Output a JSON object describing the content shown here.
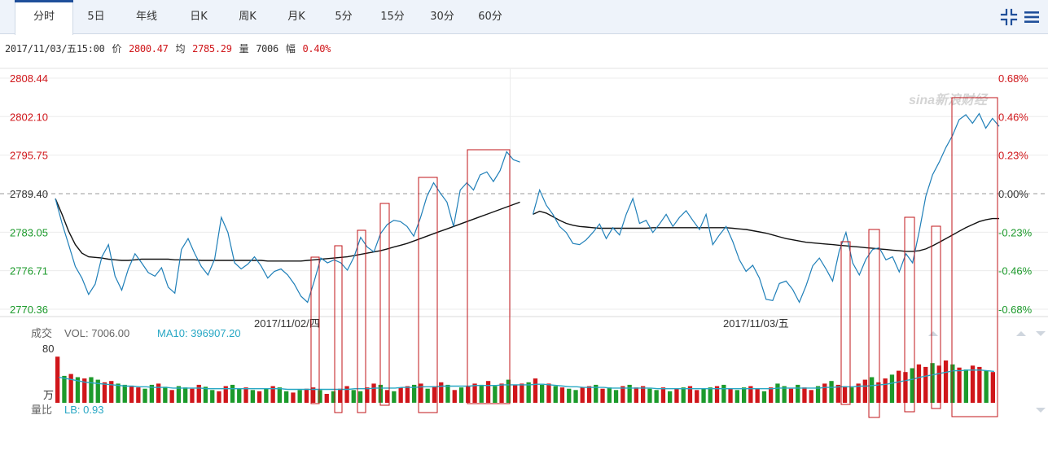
{
  "tabs": [
    "分时",
    "5日",
    "年线",
    "日K",
    "周K",
    "月K",
    "5分",
    "15分",
    "30分",
    "60分"
  ],
  "active_tab": "分时",
  "info": {
    "datetime": "2017/11/03/五15:00",
    "price_label": "价",
    "price": "2800.47",
    "avg_label": "均",
    "avg": "2785.29",
    "vol_label": "量",
    "vol": "7006",
    "amp_label": "幅",
    "amp": "0.40%"
  },
  "watermark": "sina新浪财经",
  "icons": {
    "fullscreen": "collapse-arrows-icon",
    "menu": "menu-icon"
  },
  "colors": {
    "price_line": "#1f7fb8",
    "avg_line": "#111111",
    "up": "#d0161a",
    "down": "#1c9a2b",
    "ma_line": "#27a7c4",
    "highlight_box": "#c0141a",
    "base_line": "#999999"
  },
  "chart_data": {
    "type": "line",
    "title": "",
    "y_ticks_left": [
      "2808.44",
      "2802.10",
      "2795.75",
      "2789.40",
      "2783.05",
      "2776.71",
      "2770.36"
    ],
    "y_ticks_right": [
      "0.68%",
      "0.46%",
      "0.23%",
      "0.00%",
      "-0.23%",
      "-0.46%",
      "-0.68%"
    ],
    "ylim": [
      2770.36,
      2808.44
    ],
    "prev_close": 2789.4,
    "x_labels": [
      "2017/11/02/四",
      "2017/11/03/五"
    ],
    "series": [
      {
        "day": "2017/11/02/四",
        "price": [
          2788.6,
          2784.5,
          2781.0,
          2777.4,
          2775.5,
          2772.8,
          2774.5,
          2779.0,
          2781.0,
          2775.8,
          2773.5,
          2777.0,
          2779.5,
          2778.0,
          2776.4,
          2775.8,
          2777.2,
          2774.0,
          2773.0,
          2780.2,
          2782.0,
          2779.5,
          2777.4,
          2776.0,
          2778.6,
          2785.5,
          2783.0,
          2778.0,
          2777.0,
          2777.8,
          2779.0,
          2777.5,
          2775.5,
          2776.6,
          2777.0,
          2776.0,
          2774.5,
          2772.5,
          2771.5,
          2775.0,
          2778.8,
          2778.0,
          2778.5,
          2778.0,
          2776.8,
          2779.0,
          2782.2,
          2780.6,
          2779.8,
          2782.8,
          2784.3,
          2785.0,
          2784.8,
          2784.0,
          2782.4,
          2785.4,
          2789.0,
          2791.2,
          2789.5,
          2788.0,
          2784.0,
          2790.0,
          2791.2,
          2790.0,
          2792.5,
          2793.0,
          2791.4,
          2793.2,
          2796.3,
          2795.0,
          2794.6
        ],
        "avg": [
          2788.6,
          2786.0,
          2783.2,
          2781.0,
          2779.6,
          2779.0,
          2778.9,
          2778.8,
          2778.6,
          2778.5,
          2778.4,
          2778.4,
          2778.5,
          2778.6,
          2778.6,
          2778.6,
          2778.6,
          2778.6,
          2778.5,
          2778.5,
          2778.5,
          2778.5,
          2778.4,
          2778.4,
          2778.4,
          2778.4,
          2778.4,
          2778.4,
          2778.4,
          2778.4,
          2778.4,
          2778.4,
          2778.3,
          2778.3,
          2778.3,
          2778.3,
          2778.3,
          2778.3,
          2778.4,
          2778.5,
          2778.6,
          2778.7,
          2778.8,
          2778.9,
          2779.0,
          2779.2,
          2779.4,
          2779.6,
          2779.8,
          2780.0,
          2780.3,
          2780.6,
          2780.9,
          2781.2,
          2781.6,
          2782.0,
          2782.4,
          2782.8,
          2783.2,
          2783.6,
          2784.0,
          2784.4,
          2784.8,
          2785.2,
          2785.6,
          2786.0,
          2786.4,
          2786.8,
          2787.2,
          2787.6,
          2788.0
        ]
      },
      {
        "day": "2017/11/03/五",
        "price": [
          2786.0,
          2790.0,
          2787.5,
          2786.0,
          2784.0,
          2783.0,
          2781.2,
          2781.0,
          2781.8,
          2783.0,
          2784.4,
          2782.0,
          2783.8,
          2782.6,
          2786.0,
          2788.6,
          2784.5,
          2785.0,
          2783.0,
          2784.4,
          2786.0,
          2784.0,
          2785.5,
          2786.6,
          2785.0,
          2783.5,
          2786.0,
          2781.0,
          2782.6,
          2784.0,
          2781.5,
          2778.5,
          2776.6,
          2777.6,
          2775.5,
          2772.0,
          2771.8,
          2774.6,
          2775.0,
          2773.6,
          2771.5,
          2774.2,
          2777.5,
          2778.8,
          2777.0,
          2775.0,
          2780.0,
          2783.0,
          2778.0,
          2776.0,
          2778.6,
          2780.2,
          2780.5,
          2778.5,
          2779.0,
          2776.5,
          2779.5,
          2778.0,
          2783.2,
          2789.0,
          2792.5,
          2794.6,
          2797.0,
          2799.0,
          2801.6,
          2802.4,
          2801.0,
          2802.6,
          2800.2,
          2801.8,
          2800.5
        ],
        "avg": [
          2786.0,
          2786.5,
          2786.2,
          2785.6,
          2785.0,
          2784.5,
          2784.2,
          2784.0,
          2783.9,
          2783.8,
          2783.7,
          2783.7,
          2783.7,
          2783.7,
          2783.7,
          2783.7,
          2783.7,
          2783.7,
          2783.8,
          2783.8,
          2783.8,
          2783.8,
          2783.8,
          2783.8,
          2783.8,
          2783.8,
          2783.8,
          2783.8,
          2783.8,
          2783.8,
          2783.7,
          2783.6,
          2783.5,
          2783.3,
          2783.1,
          2782.9,
          2782.6,
          2782.3,
          2782.0,
          2781.8,
          2781.6,
          2781.4,
          2781.3,
          2781.2,
          2781.1,
          2781.0,
          2780.9,
          2780.8,
          2780.7,
          2780.6,
          2780.5,
          2780.4,
          2780.3,
          2780.2,
          2780.1,
          2780.0,
          2779.9,
          2779.9,
          2780.0,
          2780.3,
          2780.8,
          2781.4,
          2782.0,
          2782.6,
          2783.2,
          2783.8,
          2784.3,
          2784.8,
          2785.1,
          2785.3,
          2785.3
        ]
      }
    ],
    "volume_header": {
      "label": "成交",
      "vol_text": "VOL: 7006.00",
      "ma_text": "MA10: 396907.20",
      "ymax_label": "80",
      "unit_label": "万",
      "ratio_label": "量比",
      "lb_text": "LB: 0.93"
    },
    "volume": [
      72,
      42,
      45,
      40,
      38,
      40,
      36,
      32,
      34,
      30,
      28,
      26,
      24,
      22,
      28,
      30,
      25,
      20,
      26,
      24,
      22,
      28,
      25,
      20,
      18,
      26,
      28,
      22,
      24,
      20,
      18,
      22,
      26,
      24,
      18,
      16,
      20,
      22,
      24,
      20,
      14,
      18,
      22,
      26,
      20,
      18,
      24,
      30,
      28,
      20,
      18,
      24,
      26,
      28,
      30,
      22,
      26,
      32,
      28,
      20,
      24,
      26,
      30,
      28,
      34,
      26,
      30,
      36,
      28,
      30,
      32,
      38,
      28,
      30,
      26,
      24,
      22,
      20,
      24,
      26,
      28,
      22,
      24,
      20,
      26,
      28,
      24,
      26,
      22,
      20,
      24,
      18,
      22,
      24,
      26,
      20,
      22,
      24,
      26,
      28,
      22,
      20,
      24,
      26,
      22,
      18,
      24,
      30,
      26,
      22,
      28,
      24,
      20,
      26,
      30,
      34,
      28,
      26,
      24,
      30,
      36,
      40,
      32,
      38,
      44,
      50,
      48,
      54,
      60,
      56,
      62,
      58,
      66,
      60,
      55,
      52,
      58,
      56,
      50,
      48
    ],
    "volume_up": [
      true,
      false,
      true,
      false,
      true,
      false,
      false,
      true,
      true,
      false,
      false,
      true,
      true,
      false,
      false,
      true,
      false,
      true,
      false,
      false,
      true,
      true,
      false,
      false,
      true,
      true,
      false,
      false,
      true,
      false,
      true,
      false,
      true,
      false,
      false,
      true,
      false,
      true,
      true,
      false,
      true,
      false,
      true,
      true,
      false,
      false,
      true,
      true,
      false,
      true,
      false,
      true,
      true,
      false,
      true,
      false,
      true,
      true,
      false,
      true,
      false,
      true,
      true,
      false,
      true,
      false,
      true,
      false,
      true,
      true,
      false,
      true,
      false,
      true,
      false,
      true,
      false,
      false,
      true,
      true,
      false,
      true,
      false,
      false,
      true,
      false,
      true,
      true,
      false,
      false,
      true,
      false,
      true,
      false,
      true,
      true,
      false,
      false,
      true,
      false,
      true,
      false,
      false,
      true,
      true,
      false,
      true,
      false,
      false,
      true,
      false,
      true,
      true,
      false,
      true,
      false,
      true,
      true,
      false,
      true,
      true,
      false,
      true,
      true,
      false,
      true,
      true,
      false,
      true,
      true,
      false,
      true,
      true,
      false,
      true,
      false,
      true,
      true,
      false,
      true
    ],
    "volume_ma": [
      40,
      38,
      36,
      34,
      32,
      31,
      30,
      29,
      28,
      27,
      26,
      26,
      25,
      25,
      24,
      24,
      24,
      23,
      23,
      23,
      23,
      23,
      22,
      22,
      22,
      22,
      22,
      22,
      22,
      22,
      22,
      22,
      22,
      22,
      21,
      21,
      21,
      21,
      21,
      21,
      21,
      21,
      21,
      21,
      22,
      22,
      22,
      23,
      23,
      23,
      23,
      24,
      24,
      24,
      25,
      25,
      25,
      26,
      26,
      26,
      26,
      26,
      27,
      27,
      27,
      27,
      28,
      28,
      28,
      28,
      28,
      29,
      29,
      28,
      27,
      26,
      25,
      25,
      24,
      24,
      24,
      24,
      23,
      23,
      23,
      23,
      23,
      23,
      23,
      22,
      22,
      22,
      22,
      22,
      22,
      22,
      22,
      22,
      22,
      22,
      22,
      22,
      22,
      22,
      22,
      22,
      22,
      23,
      23,
      23,
      23,
      23,
      23,
      23,
      24,
      24,
      25,
      25,
      25,
      26,
      26,
      27,
      28,
      29,
      31,
      33,
      35,
      37,
      40,
      42,
      44,
      46,
      48,
      50,
      50,
      51,
      51,
      51,
      50,
      49
    ]
  }
}
